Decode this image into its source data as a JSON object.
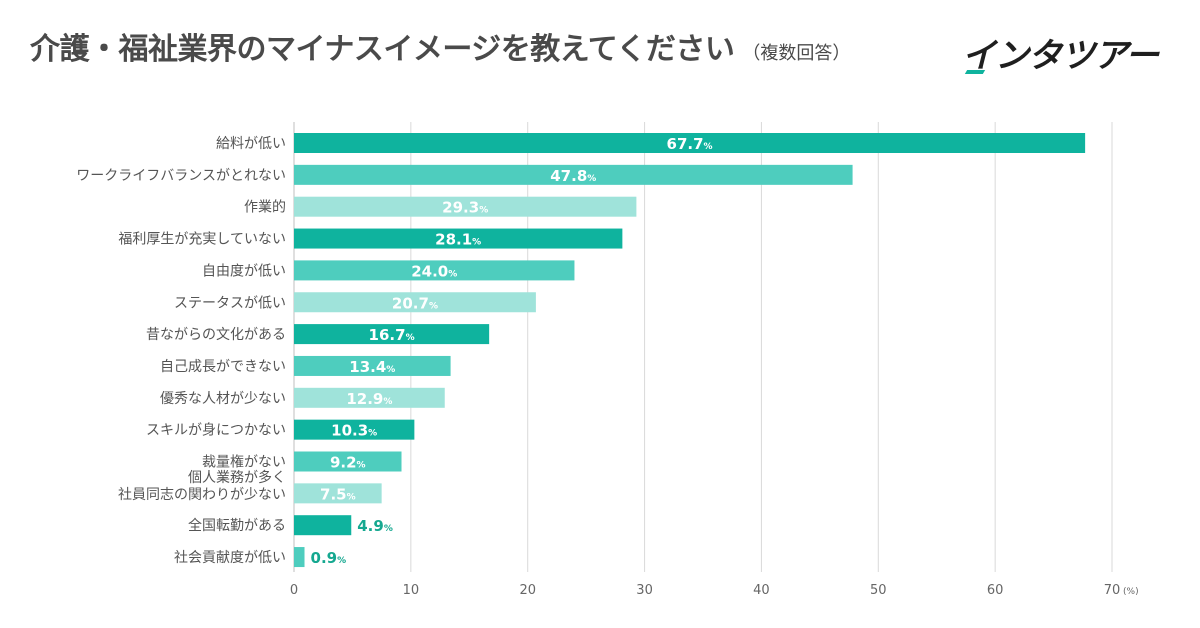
{
  "title": {
    "main": "介護・福祉業界のマイナスイメージを教えてください",
    "note": "（複数回答）"
  },
  "logo": {
    "text": "インタツアー"
  },
  "colors": {
    "dark": "#0fb39e",
    "mid": "#4ecdbe",
    "light": "#9fe3da",
    "grid": "#d9d9d9",
    "outside_label": "#15a890"
  },
  "chart_data": {
    "type": "bar",
    "orientation": "horizontal",
    "title": "介護・福祉業界のマイナスイメージを教えてください（複数回答）",
    "xlim": [
      0,
      70
    ],
    "xticks": [
      0,
      10,
      20,
      30,
      40,
      50,
      60,
      70
    ],
    "unit": "(%)",
    "value_suffix": "%",
    "categories": [
      [
        "給料が低い"
      ],
      [
        "ワークライフバランスがとれない"
      ],
      [
        "作業的"
      ],
      [
        "福利厚生が充実していない"
      ],
      [
        "自由度が低い"
      ],
      [
        "ステータスが低い"
      ],
      [
        "昔ながらの文化がある"
      ],
      [
        "自己成長ができない"
      ],
      [
        "優秀な人材が少ない"
      ],
      [
        "スキルが身につかない"
      ],
      [
        "裁量権がない"
      ],
      [
        "個人業務が多く",
        "社員同志の関わりが少ない"
      ],
      [
        "全国転勤がある"
      ],
      [
        "社会貢献度が低い"
      ]
    ],
    "values": [
      67.7,
      47.8,
      29.3,
      28.1,
      24.0,
      20.7,
      16.7,
      13.4,
      12.9,
      10.3,
      9.2,
      7.5,
      4.9,
      0.9
    ],
    "value_labels": [
      "67.7",
      "47.8",
      "29.3",
      "28.1",
      "24.0",
      "20.7",
      "16.7",
      "13.4",
      "12.9",
      "10.3",
      "9.2",
      "7.5",
      "4.9",
      "0.9"
    ]
  }
}
